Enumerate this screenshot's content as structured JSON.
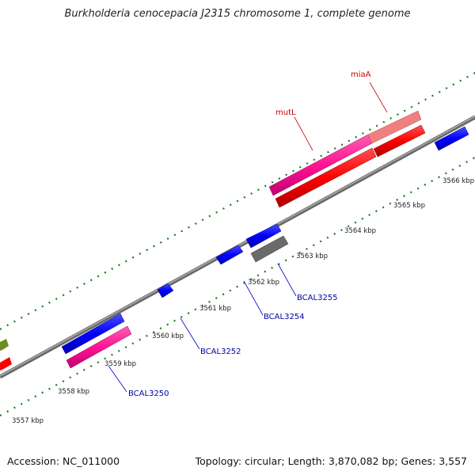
{
  "title": "Burkholderia cenocepacia J2315 chromosome 1, complete genome",
  "footer": {
    "accession": "Accession: NC_011000",
    "summary": "Topology: circular; Length: 3,870,082 bp; Genes: 3,557"
  },
  "tick_labels": [
    "3557 kbp",
    "3558 kbp",
    "3559 kbp",
    "3560 kbp",
    "3561 kbp",
    "3562 kbp",
    "3563 kbp",
    "3564 kbp",
    "3565 kbp",
    "3566 kbp"
  ],
  "gene_labels": {
    "bcal3250": "BCAL3250",
    "bcal3252": "BCAL3252",
    "bcal3254": "BCAL3254",
    "bcal3255": "BCAL3255",
    "mutl": "mutL",
    "miaa": "miaA"
  },
  "colors": {
    "backbone": "#888888",
    "forward_gene": "#ff0000",
    "reverse_gene": "#0000ff",
    "highlight_gene": "#ff1493",
    "pseudo_gene": "#666666",
    "tick": "#1a7a1a",
    "label_blue": "#0000aa",
    "label_red": "#cc0000"
  }
}
